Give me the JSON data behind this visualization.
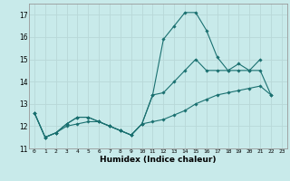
{
  "title": "",
  "xlabel": "Humidex (Indice chaleur)",
  "background_color": "#c8eaea",
  "grid_color": "#b8d8d8",
  "line_color": "#1a7070",
  "xlim": [
    -0.5,
    23.5
  ],
  "ylim": [
    11,
    17.5
  ],
  "yticks": [
    11,
    12,
    13,
    14,
    15,
    16,
    17
  ],
  "xticks": [
    0,
    1,
    2,
    3,
    4,
    5,
    6,
    7,
    8,
    9,
    10,
    11,
    12,
    13,
    14,
    15,
    16,
    17,
    18,
    19,
    20,
    21,
    22,
    23
  ],
  "xtick_labels": [
    "0",
    "1",
    "2",
    "3",
    "4",
    "5",
    "6",
    "7",
    "8",
    "9",
    "10",
    "11",
    "12",
    "13",
    "14",
    "15",
    "16",
    "17",
    "18",
    "19",
    "20",
    "21",
    "22",
    "23"
  ],
  "line1_x": [
    0,
    1,
    2,
    3,
    4,
    5,
    6,
    7,
    8,
    9,
    10,
    11,
    12,
    13,
    14,
    15,
    16,
    17,
    18,
    19,
    20,
    21
  ],
  "line1_y": [
    12.6,
    11.5,
    11.7,
    12.1,
    12.4,
    12.4,
    12.2,
    12.0,
    11.8,
    11.6,
    12.1,
    13.4,
    15.9,
    16.5,
    17.1,
    17.1,
    16.3,
    15.1,
    14.5,
    14.5,
    14.5,
    15.0
  ],
  "line2_x": [
    0,
    1,
    2,
    3,
    4,
    5,
    6,
    7,
    8,
    9,
    10,
    11,
    12,
    13,
    14,
    15,
    16,
    17,
    18,
    19,
    20,
    21,
    22
  ],
  "line2_y": [
    12.6,
    11.5,
    11.7,
    12.1,
    12.4,
    12.4,
    12.2,
    12.0,
    11.8,
    11.6,
    12.1,
    13.4,
    13.5,
    14.0,
    14.5,
    15.0,
    14.5,
    14.5,
    14.5,
    14.8,
    14.5,
    14.5,
    13.4
  ],
  "line3_x": [
    0,
    1,
    2,
    3,
    4,
    5,
    6,
    7,
    8,
    9,
    10,
    11,
    12,
    13,
    14,
    15,
    16,
    17,
    18,
    19,
    20,
    21,
    22
  ],
  "line3_y": [
    12.6,
    11.5,
    11.7,
    12.0,
    12.1,
    12.2,
    12.2,
    12.0,
    11.8,
    11.6,
    12.1,
    12.2,
    12.3,
    12.5,
    12.7,
    13.0,
    13.2,
    13.4,
    13.5,
    13.6,
    13.7,
    13.8,
    13.4
  ]
}
